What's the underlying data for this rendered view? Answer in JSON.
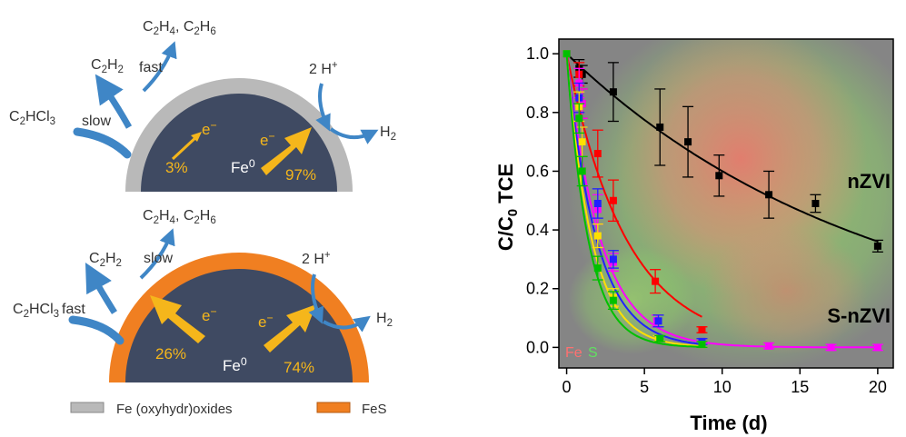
{
  "schematic": {
    "top": {
      "reactant": "C<sub>2</sub>HCl<sub>3</sub>",
      "step1_rate": "slow",
      "intermediate": "C<sub>2</sub>H<sub>2</sub>",
      "step2_rate": "fast",
      "products": "C<sub>2</sub>H<sub>4</sub>, C<sub>2</sub>H<sub>6</sub>",
      "proton": "2 H<sup>+</sup>",
      "hydrogen": "H<sub>2</sub>",
      "electron": "e<sup>−</sup>",
      "core": "Fe<sup>0</sup>",
      "pct_left": "3%",
      "pct_right": "97%",
      "shell_color": "#b9b9b9"
    },
    "bottom": {
      "reactant": "C<sub>2</sub>HCl<sub>3</sub>",
      "step1_rate": "fast",
      "intermediate": "C<sub>2</sub>H<sub>2</sub>",
      "step2_rate": "slow",
      "products": "C<sub>2</sub>H<sub>4</sub>, C<sub>2</sub>H<sub>6</sub>",
      "proton": "2 H<sup>+</sup>",
      "hydrogen": "H<sub>2</sub>",
      "electron": "e<sup>−</sup>",
      "core": "Fe<sup>0</sup>",
      "pct_left": "26%",
      "pct_right": "74%",
      "shell_color": "#f07f21"
    },
    "core_color": "#3f4a62",
    "electron_color": "#f5b61b",
    "flow_color": "#3f86c6",
    "legend": [
      {
        "label": "Fe (oxyhydr)oxides",
        "color": "#b9b9b9"
      },
      {
        "label": "FeS",
        "color": "#f07f21"
      }
    ]
  },
  "chart_data": {
    "type": "scatter",
    "ylabel": "C/C<tspan dy='5' font-size='15'>0</tspan><tspan dy='-5'> TCE</tspan>",
    "xlabel": "Time (d)",
    "xlim": [
      -0.5,
      21
    ],
    "ylim": [
      -0.07,
      1.05
    ],
    "xticks": [
      0,
      5,
      10,
      15,
      20
    ],
    "yticks": [
      0.0,
      0.2,
      0.4,
      0.6,
      0.8,
      1.0
    ],
    "grid": false,
    "labels": {
      "upper": "nZVI",
      "lower": "S-nZVI"
    },
    "overlay_labels": [
      {
        "text": "Fe",
        "color": "#ff7070"
      },
      {
        "text": "S",
        "color": "#60e060"
      }
    ],
    "series": [
      {
        "color": "#000000",
        "k": 0.051,
        "points": [
          [
            0,
            1.0
          ],
          [
            0.8,
            0.95
          ],
          [
            1,
            0.93
          ],
          [
            3,
            0.87
          ],
          [
            6,
            0.75
          ],
          [
            7.8,
            0.7
          ],
          [
            9.8,
            0.585
          ],
          [
            13,
            0.52
          ],
          [
            16,
            0.49
          ],
          [
            20,
            0.345
          ]
        ],
        "errors": [
          0,
          0.03,
          0.03,
          0.1,
          0.13,
          0.12,
          0.07,
          0.08,
          0.03,
          0.02
        ]
      },
      {
        "color": "#ff0000",
        "k": 0.26,
        "points": [
          [
            0,
            1.0
          ],
          [
            0.8,
            0.93
          ],
          [
            1,
            0.83
          ],
          [
            2,
            0.66
          ],
          [
            3,
            0.5
          ],
          [
            5.7,
            0.225
          ],
          [
            8.7,
            0.06
          ]
        ],
        "errors": [
          0,
          0.04,
          0.05,
          0.08,
          0.07,
          0.04,
          0.01
        ]
      },
      {
        "color": "#ff00ff",
        "k": 0.46,
        "points": [
          [
            0,
            1.0
          ],
          [
            0.8,
            0.9
          ],
          [
            1,
            0.83
          ],
          [
            2,
            0.47
          ],
          [
            3,
            0.29
          ],
          [
            5.8,
            0.09
          ],
          [
            8.7,
            0.02
          ],
          [
            13,
            0.005
          ],
          [
            17,
            0.0
          ],
          [
            20,
            0.0
          ]
        ],
        "errors": [
          0,
          0.05,
          0.05,
          0.05,
          0.03,
          0.02,
          0.01,
          0.01,
          0.01,
          0.01
        ]
      },
      {
        "color": "#2020ff",
        "k": 0.52,
        "points": [
          [
            0,
            1.0
          ],
          [
            0.8,
            0.85
          ],
          [
            1,
            0.7
          ],
          [
            2,
            0.49
          ],
          [
            3,
            0.3
          ],
          [
            5.9,
            0.09
          ],
          [
            8.7,
            0.02
          ]
        ],
        "errors": [
          0,
          0.05,
          0.05,
          0.05,
          0.03,
          0.02,
          0.01
        ]
      },
      {
        "color": "#ffe000",
        "k": 0.62,
        "points": [
          [
            0,
            1.0
          ],
          [
            0.8,
            0.82
          ],
          [
            1,
            0.7
          ],
          [
            2,
            0.38
          ],
          [
            3,
            0.17
          ],
          [
            5.9,
            0.03
          ],
          [
            8.7,
            0.01
          ]
        ],
        "errors": [
          0,
          0.05,
          0.05,
          0.04,
          0.03,
          0.01,
          0.01
        ]
      },
      {
        "color": "#00c000",
        "k": 0.72,
        "points": [
          [
            0,
            1.0
          ],
          [
            0.8,
            0.78
          ],
          [
            1,
            0.6
          ],
          [
            2,
            0.27
          ],
          [
            3,
            0.16
          ],
          [
            6,
            0.03
          ],
          [
            8.7,
            0.01
          ]
        ],
        "errors": [
          0,
          0.05,
          0.05,
          0.04,
          0.03,
          0.01,
          0.01
        ]
      }
    ]
  }
}
